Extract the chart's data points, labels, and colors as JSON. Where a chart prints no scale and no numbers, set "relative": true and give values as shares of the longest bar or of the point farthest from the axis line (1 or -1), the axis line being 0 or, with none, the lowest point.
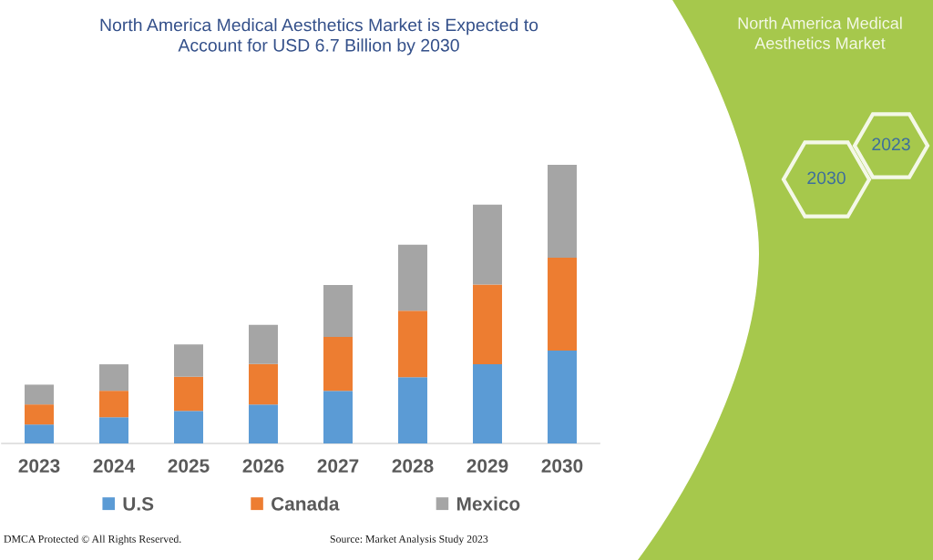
{
  "chart_data": {
    "type": "bar",
    "title": "North America Medical Aesthetics Market is Expected to\nAccount for USD 6.7 Billion by 2030",
    "categories": [
      "2023",
      "2024",
      "2025",
      "2026",
      "2027",
      "2028",
      "2029",
      "2030"
    ],
    "stacked": true,
    "relative": true,
    "legend": "bottom",
    "series": [
      {
        "name": "U.S",
        "color": "#5b9bd5",
        "values": [
          0.068,
          0.094,
          0.117,
          0.14,
          0.189,
          0.238,
          0.284,
          0.333
        ]
      },
      {
        "name": "Canada",
        "color": "#ed7d31",
        "values": [
          0.072,
          0.095,
          0.122,
          0.145,
          0.193,
          0.238,
          0.286,
          0.334
        ]
      },
      {
        "name": "Mexico",
        "color": "#a5a5a5",
        "values": [
          0.071,
          0.095,
          0.116,
          0.141,
          0.187,
          0.237,
          0.287,
          0.333
        ]
      }
    ],
    "annotations": [
      "DMCA Protected © All Rights Reserved.",
      "Source: Market Analysis Study 2023",
      "North America Medical\nAesthetics Market",
      "2030",
      "2023"
    ]
  }
}
